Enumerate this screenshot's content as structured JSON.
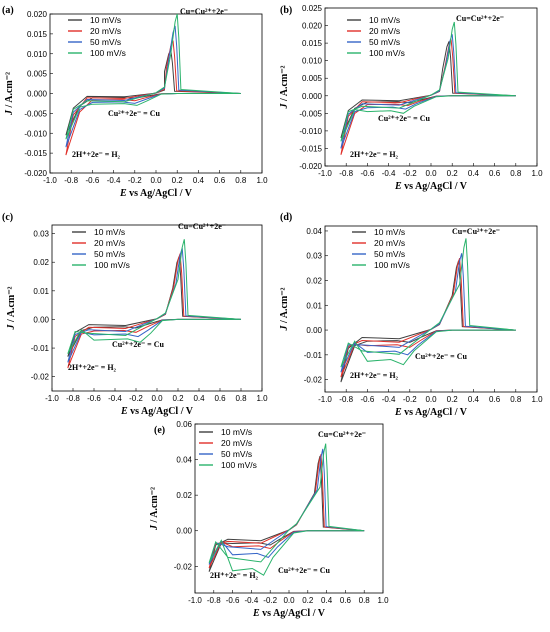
{
  "colors": {
    "10 mV/s": "#404040",
    "20 mV/s": "#e0302a",
    "50 mV/s": "#3565c8",
    "100 mV/s": "#2ab36b"
  },
  "chart_data": [
    {
      "type": "line",
      "panel": "(a)",
      "xlabel": "E vs Ag/AgCl / V",
      "ylabel": "J / A.cm⁻²",
      "xlim": [
        -1.0,
        1.0
      ],
      "ylim": [
        -0.02,
        0.02
      ],
      "xticks": [
        "-1.0",
        "-0.8",
        "-0.6",
        "-0.4",
        "-0.2",
        "0.0",
        "0.2",
        "0.4",
        "0.6",
        "0.8",
        "1.0"
      ],
      "yticks": [
        "-0.020",
        "-0.015",
        "-0.010",
        "-0.005",
        "0.000",
        "0.005",
        "0.010",
        "0.015",
        "0.020"
      ],
      "annotations": [
        "Cu=Cu²⁺+2e⁻",
        "Cu²⁺+2e⁻ = Cu",
        "2H⁺+2e⁻ = H₂"
      ],
      "series": [
        {
          "name": "10 mV/s",
          "anodic_peak": [
            0.14,
            0.011
          ],
          "cathodic_peak": [
            -0.2,
            -0.0012
          ],
          "end": [
            -0.85,
            -0.0105
          ]
        },
        {
          "name": "20 mV/s",
          "anodic_peak": [
            0.16,
            0.0133
          ],
          "cathodic_peak": [
            -0.2,
            -0.0018
          ],
          "end": [
            -0.85,
            -0.0155
          ]
        },
        {
          "name": "50 mV/s",
          "anodic_peak": [
            0.18,
            0.017
          ],
          "cathodic_peak": [
            -0.2,
            -0.0025
          ],
          "end": [
            -0.85,
            -0.0135
          ]
        },
        {
          "name": "100 mV/s",
          "anodic_peak": [
            0.2,
            0.02
          ],
          "cathodic_peak": [
            -0.18,
            -0.003
          ],
          "end": [
            -0.85,
            -0.0115
          ]
        }
      ]
    },
    {
      "type": "line",
      "panel": "(b)",
      "xlabel": "E vs Ag/AgCl / V",
      "ylabel": "J / A.cm⁻²",
      "xlim": [
        -1.0,
        1.0
      ],
      "ylim": [
        -0.02,
        0.025
      ],
      "xticks": [
        "-1.0",
        "-0.8",
        "-0.6",
        "-0.4",
        "-0.2",
        "0.0",
        "0.2",
        "0.4",
        "0.6",
        "0.8",
        "1.0"
      ],
      "yticks": [
        "-0.020",
        "-0.015",
        "-0.010",
        "-0.005",
        "0.000",
        "0.005",
        "0.010",
        "0.015",
        "0.020",
        "0.025"
      ],
      "annotations": [
        "Cu=Cu²⁺+2e⁻",
        "Cu²⁺+2e⁻ = Cu",
        "2H⁺+2e⁻ = H₂"
      ],
      "series": [
        {
          "name": "10 mV/s",
          "anodic_peak": [
            0.17,
            0.0155
          ],
          "cathodic_peak": [
            -0.2,
            -0.002
          ],
          "end": [
            -0.85,
            -0.012
          ]
        },
        {
          "name": "20 mV/s",
          "anodic_peak": [
            0.19,
            0.016
          ],
          "cathodic_peak": [
            -0.22,
            -0.0028
          ],
          "end": [
            -0.85,
            -0.0168
          ]
        },
        {
          "name": "50 mV/s",
          "anodic_peak": [
            0.2,
            0.0175
          ],
          "cathodic_peak": [
            -0.24,
            -0.0038
          ],
          "end": [
            -0.85,
            -0.015
          ]
        },
        {
          "name": "100 mV/s",
          "anodic_peak": [
            0.22,
            0.021
          ],
          "cathodic_peak": [
            -0.26,
            -0.005
          ],
          "end": [
            -0.85,
            -0.013
          ]
        }
      ]
    },
    {
      "type": "line",
      "panel": "(c)",
      "xlabel": "E vs Ag/AgCl / V",
      "ylabel": "J / A.cm⁻²",
      "xlim": [
        -1.0,
        1.0
      ],
      "ylim": [
        -0.025,
        0.033
      ],
      "xticks": [
        "-1.0",
        "-0.8",
        "-0.6",
        "-0.4",
        "-0.2",
        "0.0",
        "0.2",
        "0.4",
        "0.6",
        "0.8",
        "1.0"
      ],
      "yticks": [
        "-0.02",
        "-0.01",
        "0.00",
        "0.01",
        "0.02",
        "0.03"
      ],
      "annotations": [
        "Cu=Cu²⁺+2e⁻",
        "Cu²⁺+2e⁻ = Cu",
        "2H⁺+2e⁻ = H₂"
      ],
      "series": [
        {
          "name": "10 mV/s",
          "anodic_peak": [
            0.21,
            0.022
          ],
          "cathodic_peak": [
            -0.2,
            -0.003
          ],
          "end": [
            -0.85,
            -0.013
          ]
        },
        {
          "name": "20 mV/s",
          "anodic_peak": [
            0.22,
            0.023
          ],
          "cathodic_peak": [
            -0.2,
            -0.0045
          ],
          "end": [
            -0.85,
            -0.017
          ]
        },
        {
          "name": "50 mV/s",
          "anodic_peak": [
            0.24,
            0.025
          ],
          "cathodic_peak": [
            -0.18,
            -0.006
          ],
          "end": [
            -0.85,
            -0.015
          ]
        },
        {
          "name": "100 mV/s",
          "anodic_peak": [
            0.26,
            0.028
          ],
          "cathodic_peak": [
            -0.16,
            -0.008
          ],
          "end": [
            -0.85,
            -0.012
          ]
        }
      ]
    },
    {
      "type": "line",
      "panel": "(d)",
      "xlabel": "E vs Ag/AgCl / V",
      "ylabel": "J / A.cm⁻²",
      "xlim": [
        -1.0,
        1.0
      ],
      "ylim": [
        -0.025,
        0.042
      ],
      "xticks": [
        "-1.0",
        "-0.8",
        "-0.6",
        "-0.4",
        "-0.2",
        "0.0",
        "0.2",
        "0.4",
        "0.6",
        "0.8",
        "1.0"
      ],
      "yticks": [
        "-0.02",
        "-0.01",
        "0.00",
        "0.01",
        "0.02",
        "0.03",
        "0.04"
      ],
      "annotations": [
        "Cu=Cu²⁺+2e⁻",
        "Cu²⁺+2e⁻ = Cu",
        "2H⁺+2e⁻ = H₂"
      ],
      "series": [
        {
          "name": "10 mV/s",
          "anodic_peak": [
            0.26,
            0.028
          ],
          "cathodic_peak": [
            -0.2,
            -0.005
          ],
          "end": [
            -0.85,
            -0.021
          ]
        },
        {
          "name": "20 mV/s",
          "anodic_peak": [
            0.27,
            0.029
          ],
          "cathodic_peak": [
            -0.2,
            -0.007
          ],
          "end": [
            -0.85,
            -0.019
          ]
        },
        {
          "name": "50 mV/s",
          "anodic_peak": [
            0.29,
            0.031
          ],
          "cathodic_peak": [
            -0.22,
            -0.01
          ],
          "end": [
            -0.85,
            -0.017
          ]
        },
        {
          "name": "100 mV/s",
          "anodic_peak": [
            0.33,
            0.037
          ],
          "cathodic_peak": [
            -0.26,
            -0.014
          ],
          "end": [
            -0.85,
            -0.015
          ]
        }
      ]
    },
    {
      "type": "line",
      "panel": "(e)",
      "xlabel": "E vs Ag/AgCl / V",
      "ylabel": "J / A.cm⁻²",
      "xlim": [
        -1.0,
        1.0
      ],
      "ylim": [
        -0.035,
        0.06
      ],
      "xticks": [
        "-1.0",
        "-0.8",
        "-0.6",
        "-0.4",
        "-0.2",
        "0.0",
        "0.2",
        "0.4",
        "0.6",
        "0.8",
        "1.0"
      ],
      "yticks": [
        "-0.02",
        "0.00",
        "0.02",
        "0.04",
        "0.06"
      ],
      "annotations": [
        "Cu=Cu²⁺+2e⁻",
        "Cu²⁺+2e⁻ = Cu",
        "2H⁺+2e⁻ = H₂"
      ],
      "series": [
        {
          "name": "10 mV/s",
          "anodic_peak": [
            0.33,
            0.042
          ],
          "cathodic_peak": [
            -0.2,
            -0.008
          ],
          "end": [
            -0.85,
            -0.023
          ]
        },
        {
          "name": "20 mV/s",
          "anodic_peak": [
            0.34,
            0.043
          ],
          "cathodic_peak": [
            -0.2,
            -0.01
          ],
          "end": [
            -0.85,
            -0.021
          ]
        },
        {
          "name": "50 mV/s",
          "anodic_peak": [
            0.36,
            0.046
          ],
          "cathodic_peak": [
            -0.22,
            -0.015
          ],
          "end": [
            -0.85,
            -0.019
          ]
        },
        {
          "name": "100 mV/s",
          "anodic_peak": [
            0.39,
            0.049
          ],
          "cathodic_peak": [
            -0.27,
            -0.025
          ],
          "end": [
            -0.85,
            -0.018
          ]
        }
      ]
    }
  ]
}
